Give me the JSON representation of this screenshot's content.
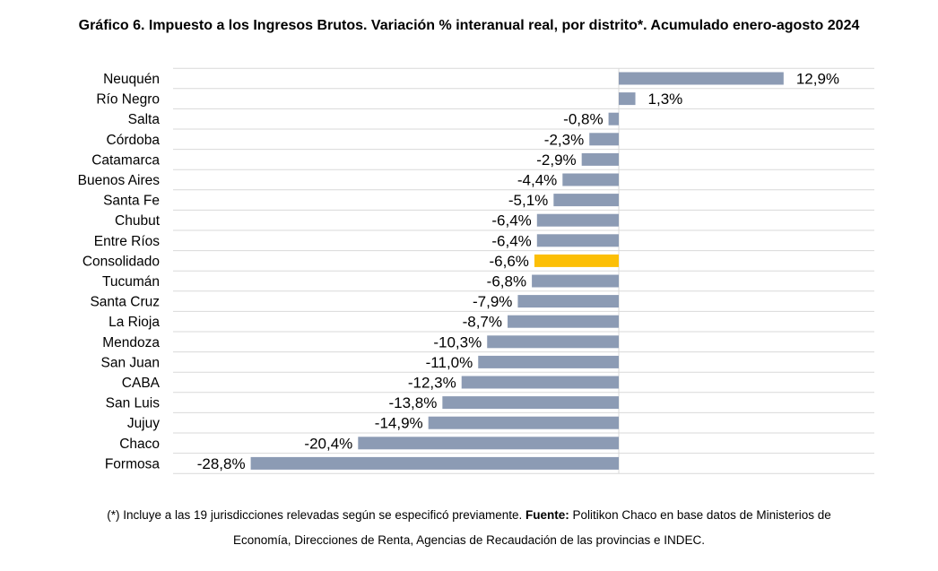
{
  "chart_data": {
    "type": "bar",
    "orientation": "horizontal",
    "title": "Gráfico 6. Impuesto a los Ingresos Brutos. Variación % interanual real, por distrito*. Acumulado enero-agosto 2024",
    "categories": [
      "Neuquén",
      "Río Negro",
      "Salta",
      "Córdoba",
      "Catamarca",
      "Buenos Aires",
      "Santa Fe",
      "Chubut",
      "Entre Ríos",
      "Consolidado",
      "Tucumán",
      "Santa Cruz",
      "La Rioja",
      "Mendoza",
      "San Juan",
      "CABA",
      "San Luis",
      "Jujuy",
      "Chaco",
      "Formosa"
    ],
    "values": [
      12.9,
      1.3,
      -0.8,
      -2.3,
      -2.9,
      -4.4,
      -5.1,
      -6.4,
      -6.4,
      -6.6,
      -6.8,
      -7.9,
      -8.7,
      -10.3,
      -11.0,
      -12.3,
      -13.8,
      -14.9,
      -20.4,
      -28.8
    ],
    "labels": [
      "12,9%",
      "1,3%",
      "-0,8%",
      "-2,3%",
      "-2,9%",
      "-4,4%",
      "-5,1%",
      "-6,4%",
      "-6,4%",
      "-6,6%",
      "-6,8%",
      "-7,9%",
      "-8,7%",
      "-10,3%",
      "-11,0%",
      "-12,3%",
      "-13,8%",
      "-14,9%",
      "-20,4%",
      "-28,8%"
    ],
    "highlight_category": "Consolidado",
    "colors": {
      "bar": "#8c9bb4",
      "highlight": "#fcbf06",
      "grid": "#d9d9d9"
    },
    "grid": true,
    "legend": "none"
  },
  "footnote": {
    "line1_prefix": "(*) Incluye a las 19 jurisdicciones relevadas según se especificó previamente.",
    "source_label": "Fuente:",
    "line1_suffix": "Politikon Chaco en base datos de Ministerios de",
    "line2": "Economía, Direcciones de Renta, Agencias de Recaudación de las provincias e INDEC."
  }
}
